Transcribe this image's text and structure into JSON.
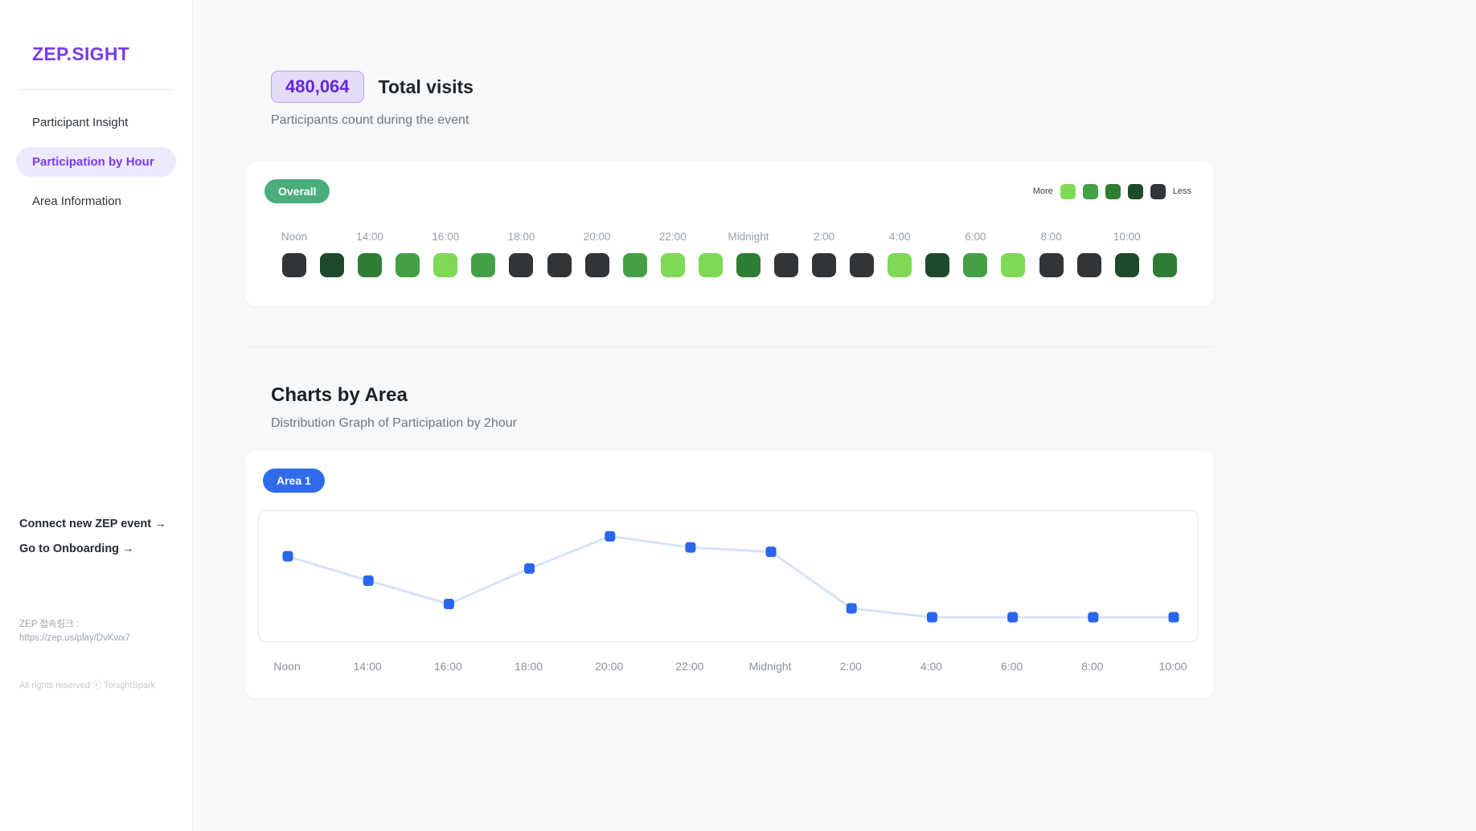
{
  "sidebar": {
    "logo": "ZEP.SIGHT",
    "items": [
      {
        "label": "Participant Insight",
        "active": false
      },
      {
        "label": "Participation by Hour",
        "active": true
      },
      {
        "label": "Area Information",
        "active": false
      }
    ],
    "links": [
      {
        "label": "Connect new ZEP event →"
      },
      {
        "label": "Go to Onboarding →"
      }
    ],
    "zep_link_label": "ZEP 접속링크 :",
    "zep_link_url": "https://zep.us/play/DvKwx7",
    "copyright": "All rights reserved ⓒ TonightSpark"
  },
  "header": {
    "total_visits_value": "480,064",
    "total_visits_label": "Total visits",
    "subtitle": "Participants count during the event"
  },
  "overall_card": {
    "badge": "Overall",
    "legend": {
      "more": "More",
      "less": "Less"
    }
  },
  "charts_section": {
    "title": "Charts by Area",
    "subtitle": "Distribution Graph of Participation by 2hour",
    "area_badge": "Area 1"
  },
  "colors": {
    "brand_purple": "#7C3AED",
    "active_nav_bg": "#EDE9FE",
    "badge_purple_bg": "#E4DDF7",
    "badge_purple_text": "#6427D8",
    "overall_pill_green": "#4BAD7B",
    "area_pill_blue": "#2F6BEB"
  },
  "chart_data": [
    {
      "type": "heatmap",
      "title": "Overall",
      "x_tick_labels": [
        "Noon",
        "14:00",
        "16:00",
        "18:00",
        "20:00",
        "22:00",
        "Midnight",
        "2:00",
        "4:00",
        "6:00",
        "8:00",
        "10:00"
      ],
      "level_colors": [
        "#7ED957",
        "#43A047",
        "#2E7D32",
        "#1D4A2B",
        "#313538"
      ],
      "level_meaning": "0 = most visits (light green, More) … 4 = least visits (charcoal, Less)",
      "cell_levels": [
        4,
        3,
        2,
        1,
        0,
        1,
        4,
        4,
        4,
        1,
        0,
        0,
        2,
        4,
        4,
        4,
        0,
        3,
        1,
        0,
        4,
        4,
        3,
        2
      ],
      "legend_more": "More",
      "legend_less": "Less"
    },
    {
      "type": "line",
      "title": "Area 1",
      "x": [
        "Noon",
        "14:00",
        "16:00",
        "18:00",
        "20:00",
        "22:00",
        "Midnight",
        "2:00",
        "4:00",
        "6:00",
        "8:00",
        "10:00"
      ],
      "values": [
        68,
        46,
        25,
        57,
        86,
        76,
        72,
        21,
        13,
        13,
        13,
        13
      ],
      "ylim": [
        0,
        100
      ],
      "marker": "square",
      "marker_color": "#2966EB",
      "line_color": "#D8E2F8"
    }
  ]
}
